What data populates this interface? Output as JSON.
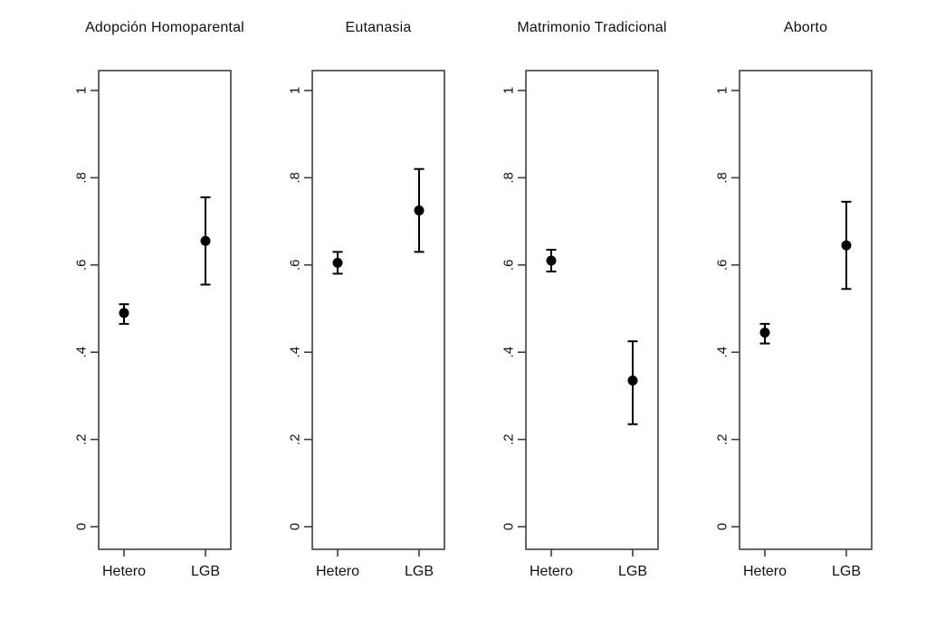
{
  "figure": {
    "background": "#ffffff",
    "point_color": "#000000",
    "ci_color": "#000000",
    "axis_color": "#3f3f3f",
    "text_color": "#111111"
  },
  "axis": {
    "ticks": [
      0,
      0.2,
      0.4,
      0.6,
      0.8,
      1
    ],
    "tick_labels": [
      "0",
      ".2",
      ".4",
      ".6",
      ".8",
      "1"
    ],
    "ylim": [
      -0.05,
      1.05
    ],
    "label_rotation": -90,
    "grid": false
  },
  "chart_data": [
    {
      "type": "scatter",
      "subtype": "point-estimate-with-ci",
      "title": "Adopción Homoparental",
      "categories": [
        "Hetero",
        "LGB"
      ],
      "points": [
        {
          "category": "Hetero",
          "estimate": 0.49,
          "ci_low": 0.465,
          "ci_high": 0.51
        },
        {
          "category": "LGB",
          "estimate": 0.655,
          "ci_low": 0.555,
          "ci_high": 0.755
        }
      ]
    },
    {
      "type": "scatter",
      "subtype": "point-estimate-with-ci",
      "title": "Eutanasia",
      "categories": [
        "Hetero",
        "LGB"
      ],
      "points": [
        {
          "category": "Hetero",
          "estimate": 0.605,
          "ci_low": 0.58,
          "ci_high": 0.63
        },
        {
          "category": "LGB",
          "estimate": 0.725,
          "ci_low": 0.63,
          "ci_high": 0.82
        }
      ]
    },
    {
      "type": "scatter",
      "subtype": "point-estimate-with-ci",
      "title": "Matrimonio Tradicional",
      "categories": [
        "Hetero",
        "LGB"
      ],
      "points": [
        {
          "category": "Hetero",
          "estimate": 0.61,
          "ci_low": 0.585,
          "ci_high": 0.635
        },
        {
          "category": "LGB",
          "estimate": 0.335,
          "ci_low": 0.235,
          "ci_high": 0.425
        }
      ]
    },
    {
      "type": "scatter",
      "subtype": "point-estimate-with-ci",
      "title": "Aborto",
      "categories": [
        "Hetero",
        "LGB"
      ],
      "points": [
        {
          "category": "Hetero",
          "estimate": 0.445,
          "ci_low": 0.42,
          "ci_high": 0.465
        },
        {
          "category": "LGB",
          "estimate": 0.645,
          "ci_low": 0.545,
          "ci_high": 0.745
        }
      ]
    }
  ]
}
